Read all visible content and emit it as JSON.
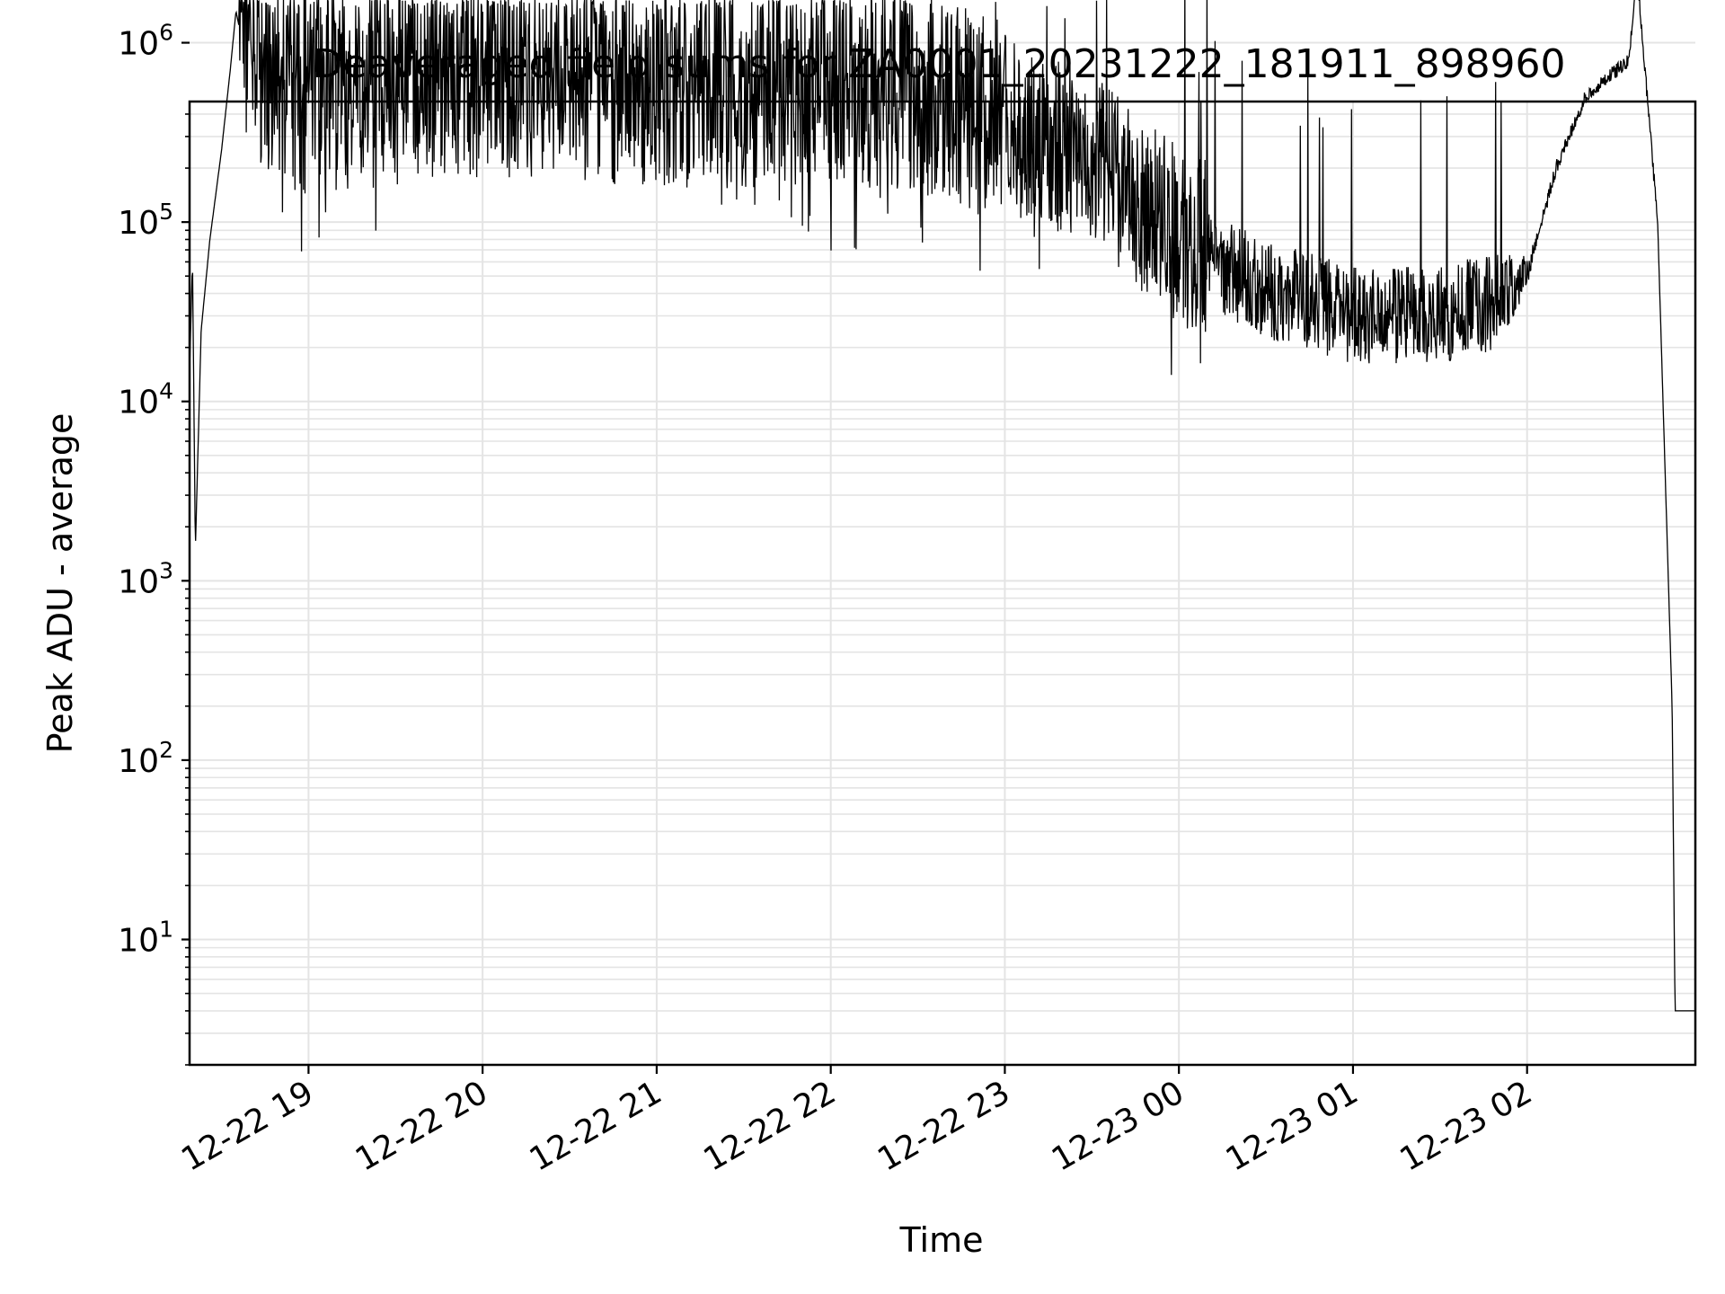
{
  "chart_data": {
    "type": "line",
    "title": "Deaveraged field sums for ZA0001_20231222_181911_898960",
    "xlabel": "Time",
    "ylabel": "Peak ADU - average",
    "yscale": "log",
    "ylim": [
      2,
      470000
    ],
    "xlim": [
      "2023-12-22T18:19",
      "2023-12-23T02:58"
    ],
    "grid": true,
    "line_color": "#000000",
    "grid_color": "#e4e4e4",
    "x_ticks": [
      {
        "label": "12-22 19",
        "t": "2023-12-22T19:00"
      },
      {
        "label": "12-22 20",
        "t": "2023-12-22T20:00"
      },
      {
        "label": "12-22 21",
        "t": "2023-12-22T21:00"
      },
      {
        "label": "12-22 22",
        "t": "2023-12-22T22:00"
      },
      {
        "label": "12-22 23",
        "t": "2023-12-22T23:00"
      },
      {
        "label": "12-23 00",
        "t": "2023-12-23T00:00"
      },
      {
        "label": "12-23 01",
        "t": "2023-12-23T01:00"
      },
      {
        "label": "12-23 02",
        "t": "2023-12-23T02:00"
      }
    ],
    "y_ticks": [
      {
        "base": "10",
        "exp": "1",
        "value": 10
      },
      {
        "base": "10",
        "exp": "2",
        "value": 100
      },
      {
        "base": "10",
        "exp": "3",
        "value": 1000
      },
      {
        "base": "10",
        "exp": "4",
        "value": 10000
      },
      {
        "base": "10",
        "exp": "5",
        "value": 100000
      },
      {
        "base": "10",
        "exp": "6",
        "value": 1000000
      }
    ],
    "series": [
      {
        "points": [
          [
            "2023-12-22T18:19",
            15000
          ],
          [
            "2023-12-22T18:20",
            60000
          ],
          [
            "2023-12-22T18:21",
            1500
          ],
          [
            "2023-12-22T18:23",
            25000
          ],
          [
            "2023-12-22T18:26",
            80000
          ],
          [
            "2023-12-22T18:30",
            250000
          ],
          [
            "2023-12-22T18:33",
            700000
          ],
          [
            "2023-12-22T18:35",
            1500000
          ],
          [
            "2023-12-22T18:40",
            600000
          ],
          [
            "2023-12-22T18:50",
            400000
          ],
          [
            "2023-12-22T19:00",
            350000
          ],
          [
            "2023-12-22T19:30",
            400000
          ],
          [
            "2023-12-22T20:00",
            450000
          ],
          [
            "2023-12-22T20:30",
            420000
          ],
          [
            "2023-12-22T21:00",
            400000
          ],
          [
            "2023-12-22T21:30",
            380000
          ],
          [
            "2023-12-22T22:00",
            400000
          ],
          [
            "2023-12-22T22:30",
            350000
          ],
          [
            "2023-12-22T23:00",
            250000
          ],
          [
            "2023-12-22T23:30",
            150000
          ],
          [
            "2023-12-23T00:00",
            60000
          ],
          [
            "2023-12-23T00:30",
            35000
          ],
          [
            "2023-12-23T01:00",
            25000
          ],
          [
            "2023-12-23T01:30",
            25000
          ],
          [
            "2023-12-23T01:50",
            30000
          ],
          [
            "2023-12-23T02:00",
            50000
          ],
          [
            "2023-12-23T02:10",
            200000
          ],
          [
            "2023-12-23T02:20",
            500000
          ],
          [
            "2023-12-23T02:35",
            800000
          ],
          [
            "2023-12-23T02:38",
            2400000
          ],
          [
            "2023-12-23T02:41",
            600000
          ],
          [
            "2023-12-23T02:45",
            100000
          ],
          [
            "2023-12-23T02:50",
            200
          ],
          [
            "2023-12-23T02:51",
            4
          ],
          [
            "2023-12-23T02:58",
            4
          ]
        ]
      }
    ]
  }
}
